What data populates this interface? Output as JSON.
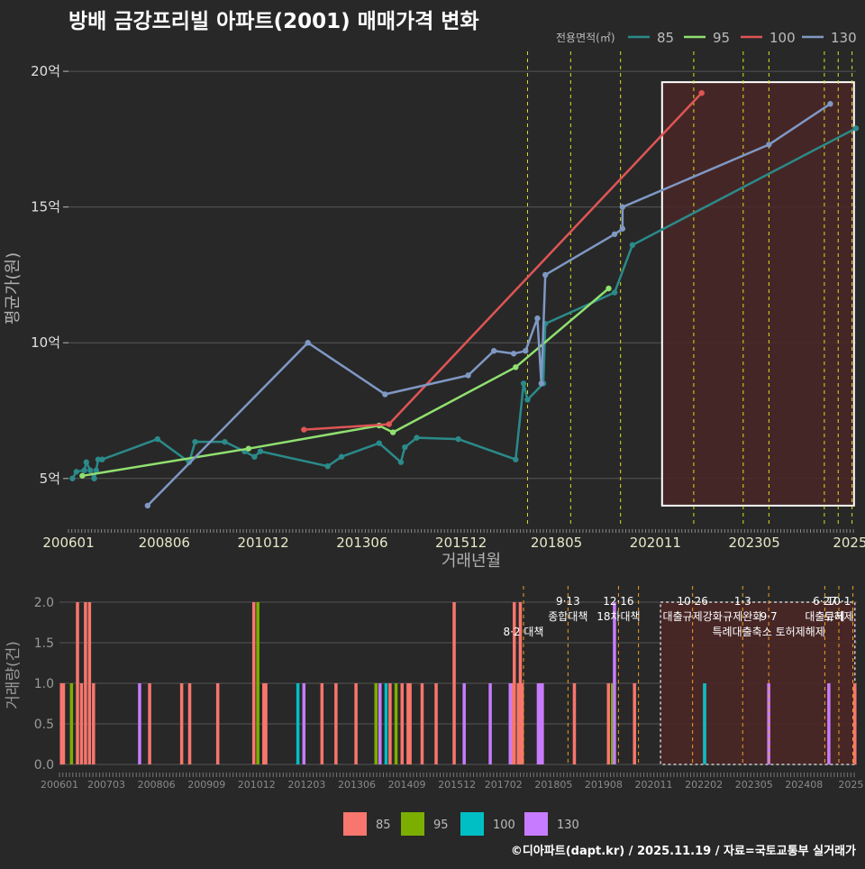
{
  "title": "방배 금강프리빌 아파트(2001) 매매가격 변화",
  "footer": "©디아파트(dapt.kr) / 2025.11.19 / 자료=국토교통부 실거래가",
  "colors": {
    "background": "#282828",
    "grid": "#555555",
    "policy_line": "#dede1e",
    "bar_policy_line": "#f0a020",
    "highlight_fill": "#4a2626",
    "s85": "#2b8a8a",
    "s95": "#90e070",
    "s100": "#e05555",
    "s130": "#7f98c4",
    "b85": "#f8766d",
    "b95": "#7cae00",
    "b100": "#00bfc4",
    "b130": "#c77cff"
  },
  "chart_data": [
    {
      "type": "line",
      "title": "방배 금강프리빌 아파트(2001) 매매가격 변화",
      "xlabel": "거래년월",
      "ylabel": "평균가(원)",
      "legend_title": "전용면적(㎡)",
      "legend_position": "top-right",
      "xlim": [
        2006.0,
        2025.9
      ],
      "ylim": [
        3.2,
        20.8
      ],
      "x_ticks": [
        {
          "v": 2006.0,
          "label": "200601"
        },
        {
          "v": 2008.42,
          "label": "200806"
        },
        {
          "v": 2010.92,
          "label": "201012"
        },
        {
          "v": 2013.42,
          "label": "201306"
        },
        {
          "v": 2015.92,
          "label": "201512"
        },
        {
          "v": 2018.33,
          "label": "201805"
        },
        {
          "v": 2020.83,
          "label": "202011"
        },
        {
          "v": 2023.33,
          "label": "202305"
        },
        {
          "v": 2025.75,
          "label": "2025"
        }
      ],
      "y_ticks": [
        {
          "v": 5,
          "label": "5억"
        },
        {
          "v": 10,
          "label": "10억"
        },
        {
          "v": 15,
          "label": "15억"
        },
        {
          "v": 20,
          "label": "20억"
        }
      ],
      "policy_dates": [
        2017.6,
        2018.69,
        2019.95,
        2021.8,
        2023.05,
        2023.7,
        2025.1,
        2025.45,
        2025.8
      ],
      "highlight_range": {
        "x": [
          2021.0,
          2025.85
        ],
        "y": [
          4.0,
          19.6
        ]
      },
      "series": [
        {
          "name": "85",
          "color": "#2b8a8a",
          "points": [
            [
              2006.1,
              5.0
            ],
            [
              2006.2,
              5.25
            ],
            [
              2006.4,
              5.3
            ],
            [
              2006.45,
              5.6
            ],
            [
              2006.55,
              5.3
            ],
            [
              2006.65,
              5.0
            ],
            [
              2006.7,
              5.3
            ],
            [
              2006.75,
              5.7
            ],
            [
              2006.85,
              5.7
            ],
            [
              2008.25,
              6.45
            ],
            [
              2009.05,
              5.6
            ],
            [
              2009.2,
              6.35
            ],
            [
              2009.95,
              6.35
            ],
            [
              2010.45,
              6.0
            ],
            [
              2010.7,
              5.8
            ],
            [
              2010.85,
              6.0
            ],
            [
              2012.55,
              5.45
            ],
            [
              2012.9,
              5.8
            ],
            [
              2013.85,
              6.3
            ],
            [
              2014.4,
              5.6
            ],
            [
              2014.5,
              6.15
            ],
            [
              2014.8,
              6.5
            ],
            [
              2015.85,
              6.45
            ],
            [
              2017.3,
              5.7
            ],
            [
              2017.5,
              8.5
            ],
            [
              2017.6,
              7.9
            ],
            [
              2018.0,
              8.5
            ],
            [
              2018.05,
              10.7
            ],
            [
              2019.8,
              11.85
            ],
            [
              2020.25,
              13.6
            ],
            [
              2025.9,
              17.9
            ]
          ]
        },
        {
          "name": "95",
          "color": "#90e070",
          "points": [
            [
              2006.35,
              5.1
            ],
            [
              2010.55,
              6.1
            ],
            [
              2013.85,
              6.95
            ],
            [
              2014.2,
              6.7
            ],
            [
              2017.3,
              9.1
            ],
            [
              2019.65,
              12.0
            ]
          ]
        },
        {
          "name": "100",
          "color": "#e05555",
          "points": [
            [
              2011.95,
              6.8
            ],
            [
              2014.1,
              7.0
            ],
            [
              2022.0,
              19.2
            ]
          ]
        },
        {
          "name": "130",
          "color": "#7f98c4",
          "points": [
            [
              2008.0,
              4.0
            ],
            [
              2012.05,
              10.0
            ],
            [
              2014.0,
              8.1
            ],
            [
              2016.1,
              8.8
            ],
            [
              2016.75,
              9.7
            ],
            [
              2017.25,
              9.6
            ],
            [
              2017.55,
              9.7
            ],
            [
              2017.85,
              10.9
            ],
            [
              2017.95,
              8.5
            ],
            [
              2018.05,
              12.5
            ],
            [
              2019.8,
              14.0
            ],
            [
              2020.0,
              14.2
            ],
            [
              2020.0,
              15.0
            ],
            [
              2023.7,
              17.3
            ],
            [
              2025.25,
              18.8
            ]
          ]
        }
      ]
    },
    {
      "type": "bar",
      "ylabel": "거래량(건)",
      "legend_position": "bottom",
      "xlim": [
        2006.0,
        2025.9
      ],
      "ylim": [
        0,
        2.2
      ],
      "y_ticks": [
        {
          "v": 0,
          "label": "0.0"
        },
        {
          "v": 0.5,
          "label": "0.5"
        },
        {
          "v": 1.0,
          "label": "1.0"
        },
        {
          "v": 1.5,
          "label": "1.5"
        },
        {
          "v": 2.0,
          "label": "2.0"
        }
      ],
      "x_ticks": [
        {
          "v": 2006.0,
          "label": "200601"
        },
        {
          "v": 2007.17,
          "label": "200703"
        },
        {
          "v": 2008.42,
          "label": "200806"
        },
        {
          "v": 2009.67,
          "label": "200909"
        },
        {
          "v": 2010.92,
          "label": "201012"
        },
        {
          "v": 2012.17,
          "label": "201203"
        },
        {
          "v": 2013.42,
          "label": "201306"
        },
        {
          "v": 2014.67,
          "label": "201409"
        },
        {
          "v": 2015.92,
          "label": "201512"
        },
        {
          "v": 2017.08,
          "label": "201702"
        },
        {
          "v": 2018.33,
          "label": "201805"
        },
        {
          "v": 2019.58,
          "label": "201908"
        },
        {
          "v": 2020.83,
          "label": "202011"
        },
        {
          "v": 2022.08,
          "label": "202202"
        },
        {
          "v": 2023.33,
          "label": "202305"
        },
        {
          "v": 2024.58,
          "label": "202408"
        },
        {
          "v": 2025.75,
          "label": "2025"
        }
      ],
      "policy_lines": [
        {
          "x": 2017.58,
          "label": "8·2 대책",
          "level": 2
        },
        {
          "x": 2018.69,
          "label": "9·13",
          "level": 0
        },
        {
          "x": 2018.69,
          "label": "종합대책",
          "level": 1
        },
        {
          "x": 2019.95,
          "label": "12·16",
          "level": 0
        },
        {
          "x": 2019.95,
          "label": "18차대책",
          "level": 1
        },
        {
          "x": 2020.45,
          "label": "",
          "level": 0
        },
        {
          "x": 2021.8,
          "label": "10·26",
          "level": 0
        },
        {
          "x": 2021.8,
          "label": "대출규제강화",
          "level": 1
        },
        {
          "x": 2023.05,
          "label": "1·3",
          "level": 0
        },
        {
          "x": 2023.05,
          "label": "규제완화",
          "level": 1
        },
        {
          "x": 2023.7,
          "label": "9·7",
          "level": 1
        },
        {
          "x": 2023.7,
          "label": "특례대출축소 토허제해제",
          "level": 2
        },
        {
          "x": 2025.1,
          "label": "6·27",
          "level": 0
        },
        {
          "x": 2025.1,
          "label": "대출규제",
          "level": 1
        },
        {
          "x": 2025.45,
          "label": "10·1",
          "level": 0
        },
        {
          "x": 2025.45,
          "label": "토허제",
          "level": 1
        },
        {
          "x": 2025.8,
          "label": "",
          "level": 0
        }
      ],
      "highlight_range": {
        "x": [
          2021.0,
          2025.85
        ],
        "y": [
          0,
          2.0
        ]
      },
      "series": [
        {
          "name": "85",
          "color": "#f8766d",
          "bars": [
            [
              2006.05,
              1
            ],
            [
              2006.1,
              1
            ],
            [
              2006.45,
              2
            ],
            [
              2006.55,
              1
            ],
            [
              2006.65,
              2
            ],
            [
              2006.75,
              2
            ],
            [
              2006.85,
              1
            ],
            [
              2008.25,
              1
            ],
            [
              2009.05,
              1
            ],
            [
              2009.25,
              1
            ],
            [
              2009.95,
              1
            ],
            [
              2010.85,
              2
            ],
            [
              2011.1,
              1
            ],
            [
              2011.15,
              1
            ],
            [
              2012.55,
              1
            ],
            [
              2012.9,
              1
            ],
            [
              2013.4,
              1
            ],
            [
              2013.9,
              1
            ],
            [
              2014.25,
              1
            ],
            [
              2014.55,
              1
            ],
            [
              2014.7,
              1
            ],
            [
              2014.75,
              1
            ],
            [
              2015.05,
              1
            ],
            [
              2015.4,
              1
            ],
            [
              2015.85,
              2
            ],
            [
              2017.3,
              1
            ],
            [
              2017.35,
              2
            ],
            [
              2017.45,
              1
            ],
            [
              2017.5,
              2
            ],
            [
              2017.55,
              1
            ],
            [
              2018.85,
              1
            ],
            [
              2019.7,
              1
            ],
            [
              2020.35,
              1
            ],
            [
              2022.1,
              1
            ],
            [
              2025.85,
              1
            ]
          ]
        },
        {
          "name": "95",
          "color": "#7cae00",
          "bars": [
            [
              2006.3,
              1
            ],
            [
              2010.95,
              2
            ],
            [
              2013.9,
              1
            ],
            [
              2014.4,
              1
            ],
            [
              2017.25,
              1
            ],
            [
              2019.8,
              1
            ]
          ]
        },
        {
          "name": "100",
          "color": "#00bfc4",
          "bars": [
            [
              2011.95,
              1
            ],
            [
              2014.15,
              1
            ],
            [
              2022.1,
              1
            ]
          ]
        },
        {
          "name": "130",
          "color": "#c77cff",
          "bars": [
            [
              2008.0,
              1
            ],
            [
              2012.1,
              1
            ],
            [
              2014.0,
              1
            ],
            [
              2016.1,
              1
            ],
            [
              2016.75,
              1
            ],
            [
              2017.25,
              1
            ],
            [
              2017.95,
              1
            ],
            [
              2018.0,
              1
            ],
            [
              2018.05,
              1
            ],
            [
              2019.85,
              2
            ],
            [
              2023.7,
              1
            ],
            [
              2025.2,
              1
            ]
          ]
        }
      ]
    }
  ],
  "legend_bottom": [
    {
      "label": "85",
      "color": "#f8766d"
    },
    {
      "label": "95",
      "color": "#7cae00"
    },
    {
      "label": "100",
      "color": "#00bfc4"
    },
    {
      "label": "130",
      "color": "#c77cff"
    }
  ],
  "legend_top": [
    {
      "label": "85",
      "color": "#2b8a8a"
    },
    {
      "label": "95",
      "color": "#90e070"
    },
    {
      "label": "100",
      "color": "#e05555"
    },
    {
      "label": "130",
      "color": "#7f98c4"
    }
  ]
}
